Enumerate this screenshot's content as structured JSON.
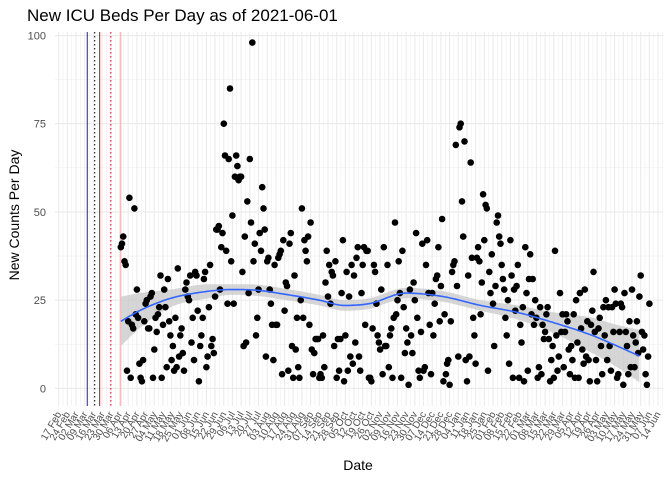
{
  "chart_data": {
    "type": "scatter",
    "title": "New ICU Beds Per Day as of 2021-06-01",
    "xlabel": "Date",
    "ylabel": "New Counts Per Day",
    "ylim": [
      -5,
      101
    ],
    "yticks": [
      0,
      25,
      50,
      75,
      100
    ],
    "xlim": [
      "2020-02-14",
      "2021-06-18"
    ],
    "x_tick_step_days": 7,
    "x_ticks": [
      "17 Feb",
      "24 Feb",
      "02 Mar",
      "09 Mar",
      "16 Mar",
      "23 Mar",
      "30 Mar",
      "06 Apr",
      "13 Apr",
      "20 Apr",
      "27 Apr",
      "04 May",
      "11 May",
      "18 May",
      "25 May",
      "01 Jun",
      "08 Jun",
      "15 Jun",
      "22 Jun",
      "29 Jun",
      "06 Jul",
      "13 Jul",
      "20 Jul",
      "27 Jul",
      "03 Aug",
      "10 Aug",
      "17 Aug",
      "24 Aug",
      "31 Aug",
      "07 Sep",
      "14 Sep",
      "21 Sep",
      "28 Sep",
      "05 Oct",
      "12 Oct",
      "19 Oct",
      "26 Oct",
      "02 Nov",
      "09 Nov",
      "16 Nov",
      "23 Nov",
      "30 Nov",
      "07 Dec",
      "14 Dec",
      "21 Dec",
      "28 Dec",
      "04 Jan",
      "11 Jan",
      "18 Jan",
      "25 Jan",
      "01 Feb",
      "08 Feb",
      "15 Feb",
      "22 Feb",
      "01 Mar",
      "08 Mar",
      "15 Mar",
      "22 Mar",
      "29 Mar",
      "05 Apr",
      "12 Apr",
      "19 Apr",
      "26 Apr",
      "03 May",
      "10 May",
      "17 May",
      "24 May",
      "31 May",
      "07 Jun",
      "14 Jun"
    ],
    "grid": true,
    "legend": "none",
    "vlines": [
      {
        "date": "2020-03-11",
        "color": "#1f1fb0",
        "style": "solid"
      },
      {
        "date": "2020-03-17",
        "color": "#000000",
        "style": "dotted"
      },
      {
        "date": "2020-03-21",
        "color": "#cc0000",
        "style": "solid"
      },
      {
        "date": "2020-03-30",
        "color": "#cc0000",
        "style": "dotted"
      },
      {
        "date": "2020-04-07",
        "color": "#f4a5a5",
        "style": "solid"
      }
    ],
    "points_start": "2020-04-07",
    "points_values": [
      40,
      41,
      43,
      36,
      35,
      5,
      19,
      54,
      3,
      18,
      17,
      51,
      21,
      28,
      20,
      7,
      3,
      2,
      8,
      19,
      24,
      25,
      17,
      17,
      26,
      27,
      3,
      11,
      20,
      16,
      21,
      23,
      32,
      3,
      18,
      28,
      23,
      6,
      31,
      19,
      15,
      8,
      12,
      5,
      20,
      6,
      34,
      9,
      15,
      17,
      10,
      5,
      28,
      30,
      26,
      25,
      32,
      13,
      20,
      8,
      33,
      32,
      22,
      2,
      12,
      15,
      20,
      31,
      33,
      6,
      9,
      23,
      35,
      12,
      14,
      10,
      26,
      45,
      45,
      46,
      28,
      40,
      44,
      75,
      66,
      39,
      24,
      65,
      85,
      36,
      49,
      24,
      60,
      66,
      63,
      59,
      60,
      60,
      33,
      12,
      43,
      13,
      53,
      27,
      65,
      47,
      98,
      36,
      41,
      15,
      20,
      28,
      44,
      39,
      57,
      51,
      45,
      9,
      36,
      37,
      28,
      24,
      18,
      8,
      35,
      18,
      18,
      37,
      38,
      39,
      4,
      42,
      22,
      30,
      29,
      5,
      41,
      44,
      12,
      3,
      32,
      11,
      20,
      6,
      3,
      25,
      51,
      20,
      42,
      39,
      36,
      43,
      18,
      47,
      11,
      4,
      10,
      14,
      14,
      14,
      3,
      4,
      3,
      15,
      6,
      30,
      39,
      26,
      35,
      24,
      33,
      32,
      12,
      36,
      3,
      14,
      5,
      14,
      27,
      42,
      2,
      15,
      33,
      5,
      26,
      9,
      35,
      7,
      32,
      13,
      37,
      40,
      9,
      5,
      27,
      35,
      40,
      18,
      39,
      39,
      3,
      3,
      2,
      17,
      35,
      33,
      24,
      15,
      13,
      11,
      28,
      4,
      40,
      12,
      12,
      35,
      6,
      15,
      17,
      3,
      20,
      47,
      21,
      25,
      36,
      27,
      3,
      39,
      23,
      10,
      17,
      13,
      1,
      28,
      15,
      10,
      30,
      25,
      44,
      20,
      5,
      3,
      16,
      41,
      5,
      6,
      35,
      42,
      27,
      18,
      4,
      27,
      15,
      24,
      31,
      32,
      40,
      19,
      29,
      48,
      2,
      21,
      4,
      7,
      8,
      1,
      19,
      33,
      35,
      36,
      69,
      29,
      9,
      74,
      75,
      53,
      43,
      70,
      8,
      2,
      32,
      9,
      64,
      37,
      20,
      15,
      7,
      37,
      40,
      36,
      21,
      30,
      55,
      42,
      52,
      51,
      5,
      33,
      27,
      38,
      24,
      12,
      29,
      47,
      49,
      43,
      41,
      35,
      31,
      28,
      20,
      15,
      25,
      7,
      42,
      32,
      3,
      28,
      22,
      29,
      35,
      3,
      18,
      13,
      23,
      2,
      40,
      27,
      5,
      31,
      38,
      21,
      31,
      18,
      25,
      20,
      3,
      6,
      23,
      4,
      18,
      14,
      16,
      21,
      23,
      14,
      2,
      8,
      12,
      3,
      39,
      15,
      5,
      9,
      27,
      16,
      21,
      6,
      16,
      21,
      19,
      11,
      4,
      12,
      8,
      21,
      3,
      25,
      13,
      3,
      27,
      17,
      11,
      7,
      28,
      9,
      19,
      8,
      2,
      18,
      22,
      33,
      16,
      8,
      2,
      17,
      20,
      12,
      4,
      23,
      15,
      25,
      8,
      23,
      12,
      5,
      23,
      16,
      28,
      24,
      3,
      4,
      16,
      24,
      23,
      1,
      27,
      16,
      12,
      4,
      19,
      6,
      28,
      15,
      6,
      13,
      19,
      10,
      26,
      32,
      16,
      11,
      15,
      4,
      1,
      9,
      24
    ],
    "smooth_start": "2020-04-07",
    "smooth_end": "2021-05-31",
    "smooth": {
      "days": [
        0,
        15,
        40,
        70,
        90,
        110,
        130,
        160,
        180,
        200,
        230,
        260,
        290,
        320,
        350,
        380,
        400,
        419
      ],
      "y": [
        19,
        22,
        25.5,
        27.5,
        28,
        27.8,
        26.8,
        25,
        23.5,
        24,
        27,
        26,
        23.5,
        21.5,
        18.5,
        15,
        12,
        9
      ],
      "lower": [
        12,
        17,
        23,
        25.5,
        26.5,
        26.2,
        25.2,
        23.5,
        22,
        22.5,
        25.5,
        24.5,
        22,
        19.5,
        15.5,
        10,
        6,
        1.5
      ],
      "upper": [
        26,
        27,
        28,
        29.5,
        29.5,
        29.4,
        28.4,
        26.5,
        25,
        25.5,
        28.5,
        27.5,
        25,
        23.5,
        21.5,
        20,
        18,
        16.5
      ]
    },
    "colors": {
      "points": "#000000",
      "smooth_line": "#3366ff",
      "smooth_band": "#c8c8c8",
      "grid": "#ebebeb"
    }
  }
}
